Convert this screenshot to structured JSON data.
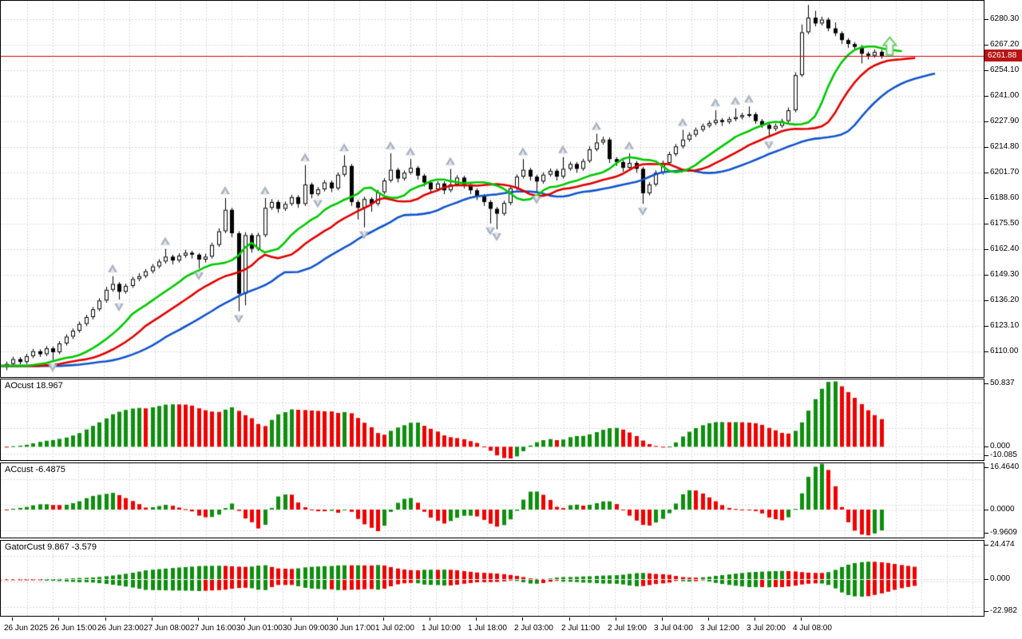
{
  "chart": {
    "current_price_label": "6261.88",
    "current_price": 6261.88
  },
  "panels": {
    "ao": {
      "label": "AOcust 18.967",
      "axis": [
        "50.837",
        "0.000",
        "-10.085"
      ],
      "ylim": [
        -10.085,
        50.837
      ]
    },
    "ac": {
      "label": "ACcust -6.4875",
      "axis": [
        "16.4640",
        "0.0000",
        "-9.9609"
      ],
      "ylim": [
        -9.9609,
        16.464
      ]
    },
    "gator": {
      "label": "GatorCust 9.867 -3.579",
      "axis": [
        "24.474",
        "0.000",
        "-22.982"
      ],
      "ylim": [
        -22.982,
        24.474
      ]
    }
  },
  "price_axis": {
    "labels": [
      "6280.30",
      "6267.20",
      "6254.10",
      "6241.00",
      "6227.90",
      "6214.80",
      "6201.70",
      "6188.60",
      "6175.50",
      "6162.40",
      "6149.30",
      "6136.20",
      "6123.10",
      "6110.00"
    ]
  },
  "time_axis": {
    "labels": [
      "26 Jun 2025",
      "26 Jun 15:00",
      "26 Jun 23:00",
      "27 Jun 08:00",
      "27 Jun 16:00",
      "30 Jun 01:00",
      "30 Jun 09:00",
      "30 Jun 17:00",
      "1 Jul 02:00",
      "1 Jul 10:00",
      "1 Jul 18:00",
      "2 Jul 03:00",
      "2 Jul 11:00",
      "2 Jul 19:00",
      "3 Jul 04:00",
      "3 Jul 12:00",
      "3 Jul 20:00",
      "4 Jul 08:00"
    ]
  },
  "colors": {
    "bg": "#ffffff",
    "grid": "#d9d9d9",
    "panel_border": "#000000",
    "text": "#000000",
    "bull": "#ffffff",
    "bear": "#000000",
    "outline": "#000000",
    "lips_green": "#00c800",
    "teeth_red": "#e00000",
    "jaw_blue": "#1155cc",
    "hist_up": "#0f8f0f",
    "hist_down": "#ee0000",
    "price_line": "#cc0000",
    "badge_bg": "#b81414",
    "badge_text": "#ffffff",
    "fractal_gray": "#aab3c2",
    "fractal_light": "#e2e6ec",
    "buy_arrow_stroke": "#6ecc6e",
    "buy_arrow_fill": "#f2fbf2"
  },
  "chart_data": {
    "type": "candlestick+indicators",
    "main": {
      "ylim": [
        6097.3,
        6290.13
      ],
      "price_line": 6261.88,
      "candles": [
        [
          6102.5,
          6105.2,
          6100.8,
          6104
        ],
        [
          6104,
          6107.7,
          6103,
          6106.5
        ],
        [
          6106.5,
          6107.5,
          6103.8,
          6105
        ],
        [
          6105,
          6109.2,
          6104,
          6108
        ],
        [
          6108,
          6111.7,
          6107,
          6110.5
        ],
        [
          6110.5,
          6111.5,
          6107.6,
          6109
        ],
        [
          6109,
          6113.2,
          6108,
          6112
        ],
        [
          6112,
          6113,
          6106,
          6110
        ],
        [
          6110,
          6115.7,
          6109,
          6114.5
        ],
        [
          6114.5,
          6119.2,
          6113.4,
          6118
        ],
        [
          6118,
          6122.2,
          6116.8,
          6121
        ],
        [
          6121,
          6125.7,
          6120,
          6124.5
        ],
        [
          6124.5,
          6129.2,
          6123.4,
          6128
        ],
        [
          6128,
          6133.2,
          6126.8,
          6132
        ],
        [
          6132,
          6137.7,
          6131,
          6136.5
        ],
        [
          6136.5,
          6143.5,
          6135.4,
          6142
        ],
        [
          6142,
          6149,
          6141,
          6145
        ],
        [
          6145,
          6146,
          6137,
          6141
        ],
        [
          6141,
          6145.2,
          6140,
          6144
        ],
        [
          6144,
          6148.7,
          6143,
          6147.5
        ],
        [
          6147.5,
          6150.5,
          6146.4,
          6149
        ],
        [
          6149,
          6152.7,
          6148,
          6151.5
        ],
        [
          6151.5,
          6155.2,
          6150.4,
          6154
        ],
        [
          6154,
          6157.7,
          6153,
          6156.5
        ],
        [
          6156.5,
          6163,
          6155.4,
          6159
        ],
        [
          6159,
          6160,
          6155,
          6157
        ],
        [
          6157,
          6160.7,
          6156,
          6159.5
        ],
        [
          6159.5,
          6162.5,
          6158.4,
          6161
        ],
        [
          6161,
          6162,
          6158,
          6160
        ],
        [
          6160,
          6160.8,
          6153,
          6157.5
        ],
        [
          6157.5,
          6160.5,
          6156,
          6159
        ],
        [
          6159,
          6166.2,
          6158,
          6165
        ],
        [
          6165,
          6173.5,
          6164,
          6172
        ],
        [
          6172,
          6189,
          6171,
          6183
        ],
        [
          6183,
          6184,
          6169,
          6171
        ],
        [
          6171,
          6172,
          6131,
          6140
        ],
        [
          6140,
          6171.5,
          6134,
          6170
        ],
        [
          6170,
          6171,
          6161,
          6163
        ],
        [
          6163,
          6171.2,
          6162,
          6170
        ],
        [
          6170,
          6189,
          6169,
          6184
        ],
        [
          6184,
          6188.5,
          6183,
          6187
        ],
        [
          6187,
          6188,
          6181.5,
          6183.5
        ],
        [
          6183.5,
          6187.2,
          6182.4,
          6186
        ],
        [
          6186,
          6190.7,
          6185,
          6189.5
        ],
        [
          6189.5,
          6190.5,
          6184,
          6186
        ],
        [
          6186,
          6206,
          6185,
          6196
        ],
        [
          6196,
          6197,
          6189,
          6191
        ],
        [
          6191,
          6194.7,
          6190,
          6193.5
        ],
        [
          6193.5,
          6198.2,
          6192.4,
          6197
        ],
        [
          6197,
          6198,
          6192,
          6194
        ],
        [
          6194,
          6202.2,
          6193,
          6201
        ],
        [
          6201,
          6211,
          6200,
          6205.5
        ],
        [
          6205.5,
          6206.5,
          6185,
          6187
        ],
        [
          6187,
          6188,
          6178,
          6184
        ],
        [
          6184,
          6189.7,
          6174,
          6188.5
        ],
        [
          6188.5,
          6189.5,
          6182,
          6186
        ],
        [
          6186,
          6193.2,
          6185,
          6192
        ],
        [
          6192,
          6199.2,
          6191,
          6198
        ],
        [
          6198,
          6212,
          6197,
          6203.5
        ],
        [
          6203.5,
          6204.5,
          6197,
          6199
        ],
        [
          6199,
          6203.2,
          6197.9,
          6202
        ],
        [
          6202,
          6209,
          6201,
          6204.5
        ],
        [
          6204.5,
          6205.5,
          6198.5,
          6200.5
        ],
        [
          6200.5,
          6201.5,
          6195,
          6197
        ],
        [
          6197,
          6198,
          6191.5,
          6193.5
        ],
        [
          6193.5,
          6197.7,
          6192.4,
          6196.5
        ],
        [
          6196.5,
          6197.5,
          6191,
          6193
        ],
        [
          6193,
          6204,
          6192,
          6196
        ],
        [
          6196,
          6200.7,
          6195,
          6199.5
        ],
        [
          6199.5,
          6200.5,
          6194,
          6196
        ],
        [
          6196,
          6197,
          6191,
          6193
        ],
        [
          6193,
          6194,
          6188,
          6190
        ],
        [
          6190,
          6191,
          6185,
          6187
        ],
        [
          6187,
          6188,
          6176,
          6183.5
        ],
        [
          6183.5,
          6184.5,
          6173,
          6181
        ],
        [
          6181,
          6187.7,
          6180,
          6186.5
        ],
        [
          6186.5,
          6195.2,
          6185.4,
          6194
        ],
        [
          6194,
          6201.2,
          6193,
          6200
        ],
        [
          6200,
          6209,
          6199,
          6203.5
        ],
        [
          6203.5,
          6204.5,
          6198,
          6200
        ],
        [
          6200,
          6201,
          6192,
          6197.5
        ],
        [
          6197.5,
          6202.2,
          6196.4,
          6201
        ],
        [
          6201,
          6204.2,
          6200,
          6203
        ],
        [
          6203,
          6204,
          6198,
          6200
        ],
        [
          6200,
          6210,
          6199,
          6204
        ],
        [
          6204,
          6207.7,
          6203,
          6206.5
        ],
        [
          6206.5,
          6207.5,
          6202,
          6204
        ],
        [
          6204,
          6209.2,
          6203,
          6208
        ],
        [
          6208,
          6215.5,
          6207,
          6214
        ],
        [
          6214,
          6222,
          6213,
          6217.5
        ],
        [
          6217.5,
          6220.5,
          6216.4,
          6219
        ],
        [
          6219,
          6220,
          6207,
          6209
        ],
        [
          6209,
          6210,
          6205.5,
          6207.5
        ],
        [
          6207.5,
          6208.5,
          6202.5,
          6204.5
        ],
        [
          6204.5,
          6212,
          6203.4,
          6207
        ],
        [
          6207,
          6208,
          6202,
          6204
        ],
        [
          6204,
          6205,
          6186,
          6191.5
        ],
        [
          6191.5,
          6197.2,
          6190.4,
          6196
        ],
        [
          6196,
          6203.2,
          6195,
          6202
        ],
        [
          6202,
          6208.2,
          6201,
          6207
        ],
        [
          6207,
          6212.7,
          6206,
          6211.5
        ],
        [
          6211.5,
          6216.7,
          6210.4,
          6215.5
        ],
        [
          6215.5,
          6224,
          6214.4,
          6219
        ],
        [
          6219,
          6222.7,
          6218,
          6221.5
        ],
        [
          6221.5,
          6225.2,
          6220.4,
          6224
        ],
        [
          6224,
          6227.2,
          6223,
          6226
        ],
        [
          6226,
          6228.7,
          6225,
          6227.5
        ],
        [
          6227.5,
          6234,
          6226.4,
          6229
        ],
        [
          6229,
          6230,
          6226,
          6228
        ],
        [
          6228,
          6230.7,
          6227,
          6229.5
        ],
        [
          6229.5,
          6235,
          6228.4,
          6230.5
        ],
        [
          6230.5,
          6232.7,
          6229.4,
          6231.5
        ],
        [
          6231.5,
          6236,
          6230.4,
          6232
        ],
        [
          6232,
          6233,
          6227,
          6228.5
        ],
        [
          6228.5,
          6229.5,
          6225,
          6226.5
        ],
        [
          6226.5,
          6227.5,
          6220,
          6224.5
        ],
        [
          6224.5,
          6227.2,
          6223.4,
          6226
        ],
        [
          6226,
          6229.7,
          6225,
          6228.5
        ],
        [
          6228.5,
          6235.5,
          6227.4,
          6234
        ],
        [
          6234,
          6253.5,
          6233,
          6252
        ],
        [
          6252,
          6278,
          6251,
          6274
        ],
        [
          6274,
          6288,
          6273,
          6281.5
        ],
        [
          6281.5,
          6285,
          6277,
          6278.5
        ],
        [
          6278.5,
          6282,
          6277.4,
          6280.5
        ],
        [
          6280.5,
          6281.5,
          6274.5,
          6276
        ],
        [
          6276,
          6279,
          6272,
          6273.5
        ],
        [
          6273.5,
          6274.5,
          6268,
          6270
        ],
        [
          6270,
          6271,
          6266,
          6268
        ],
        [
          6268,
          6269,
          6264.5,
          6266.5
        ],
        [
          6266.5,
          6267.5,
          6258,
          6263
        ],
        [
          6263,
          6264,
          6260,
          6262
        ],
        [
          6262,
          6265.2,
          6261,
          6264
        ],
        [
          6264,
          6265,
          6260.5,
          6261.88
        ]
      ],
      "fractals_up": [
        16,
        24,
        33,
        39,
        45,
        51,
        58,
        61,
        67,
        78,
        84,
        89,
        94,
        102,
        107,
        110,
        112,
        121
      ],
      "fractals_down": [
        7,
        17,
        29,
        35,
        47,
        54,
        73,
        74,
        80,
        96,
        115
      ],
      "buy_arrow": {
        "bar": 133.3,
        "price": 6266.5
      }
    },
    "indicators": {
      "alligator": {
        "jaw_period": 13,
        "jaw_shift": 8,
        "teeth_period": 8,
        "teeth_shift": 5,
        "lips_period": 5,
        "lips_shift": 3
      },
      "ao": {
        "fast": 5,
        "slow": 34,
        "last_value": 18.967
      },
      "ac": {
        "signal": 5,
        "last_value": -6.4875
      },
      "gator": {
        "last_upper": 9.867,
        "last_lower": -3.579
      }
    }
  }
}
